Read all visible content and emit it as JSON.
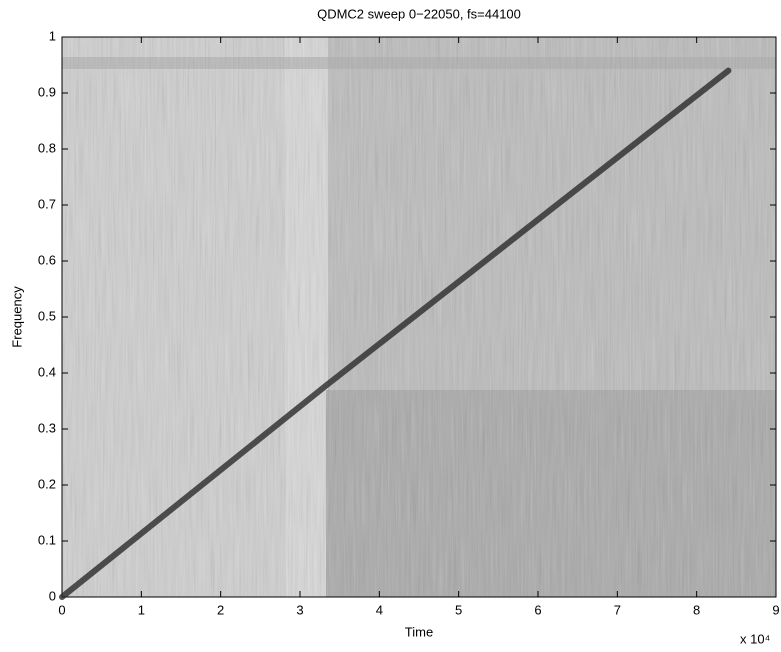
{
  "chart_data": {
    "type": "spectrogram",
    "title": "QDMC2 sweep 0−22050, fs=44100",
    "x_label": "Time",
    "y_label": "Frequency",
    "x_multiplier": "x 10⁴",
    "x": [
      0,
      33500,
      84000
    ],
    "values": [
      0,
      0.38,
      0.94
    ],
    "color": "#2a2a2a",
    "xlim": [
      0,
      90000
    ],
    "xticks": [
      0,
      {
        "value": 10000,
        "label": "1"
      },
      {
        "value": 20000,
        "label": "2"
      },
      {
        "value": 30000,
        "label": "3"
      },
      {
        "value": 40000,
        "label": "4"
      },
      {
        "value": 50000,
        "label": "5"
      },
      {
        "value": 60000,
        "label": "6"
      },
      {
        "value": 70000,
        "label": "7"
      },
      {
        "value": 80000,
        "label": "8"
      },
      {
        "value": 90000,
        "label": "9"
      }
    ],
    "ylim": [
      0,
      1
    ],
    "yticks": [
      0,
      0.1,
      0.2,
      0.3,
      0.4,
      0.5,
      0.6,
      0.7,
      0.8,
      0.9,
      1
    ]
  }
}
